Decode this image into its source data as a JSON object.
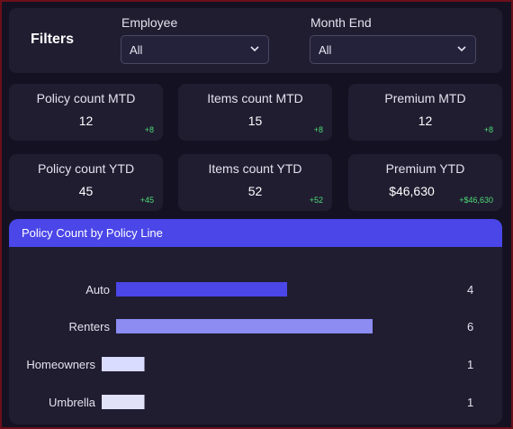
{
  "filters": {
    "title": "Filters",
    "employee": {
      "label": "Employee",
      "value": "All"
    },
    "month_end": {
      "label": "Month End",
      "value": "All"
    }
  },
  "kpis_mtd": [
    {
      "title": "Policy count MTD",
      "value": "12",
      "delta": "+8"
    },
    {
      "title": "Items count MTD",
      "value": "15",
      "delta": "+8"
    },
    {
      "title": "Premium MTD",
      "value": "12",
      "delta": "+8"
    }
  ],
  "kpis_ytd": [
    {
      "title": "Policy count YTD",
      "value": "45",
      "delta": "+45"
    },
    {
      "title": "Items count YTD",
      "value": "52",
      "delta": "+52"
    },
    {
      "title": "Premium YTD",
      "value": "$46,630",
      "delta": "+$46,630"
    }
  ],
  "colors": {
    "accent": "#4a46e8",
    "delta": "#4ddc74",
    "card": "#201d31"
  },
  "chart_data": {
    "type": "bar",
    "orientation": "horizontal",
    "title": "Policy Count by Policy Line",
    "categories": [
      "Auto",
      "Renters",
      "Homeowners",
      "Umbrella"
    ],
    "values": [
      4,
      6,
      1,
      1
    ],
    "bar_colors": [
      "#4a46e8",
      "#8c8cf2",
      "#d9dbff",
      "#e1e1f7"
    ],
    "grid": false,
    "legend": "none"
  }
}
